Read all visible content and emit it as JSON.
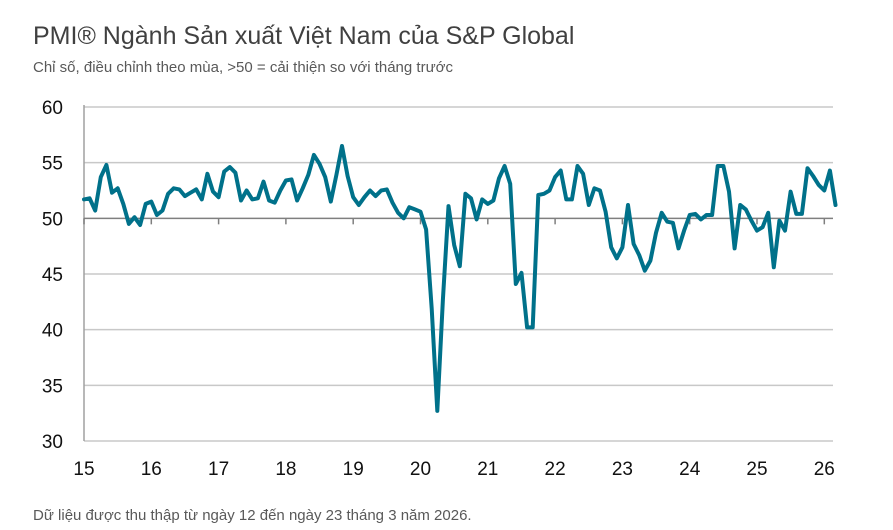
{
  "title": "PMI® Ngành Sản xuất Việt Nam của S&P Global",
  "subtitle": "Chỉ số, điều chỉnh theo mùa, >50 = cải thiện so với tháng trước",
  "footer": "Dữ liệu được thu thập từ ngày 12 đến ngày 23 tháng 3 năm 2026.",
  "chart_data": {
    "type": "line",
    "title": "PMI® Ngành Sản xuất Việt Nam của S&P Global",
    "subtitle": "Chỉ số, điều chỉnh theo mùa, >50 = cải thiện so với tháng trước",
    "xlabel": "",
    "ylabel": "",
    "ylim": [
      30,
      60
    ],
    "yticks": [
      "30",
      "35",
      "40",
      "45",
      "50",
      "55",
      "60"
    ],
    "xticks": [
      "15",
      "16",
      "17",
      "18",
      "19",
      "20",
      "21",
      "22",
      "23",
      "24",
      "25",
      "26"
    ],
    "x_start": "2015-01",
    "x_end": "2026-03",
    "frequency": "monthly",
    "grid": true,
    "line_color": "#00718A",
    "values": [
      51.7,
      51.8,
      50.7,
      53.7,
      54.8,
      52.3,
      52.7,
      51.3,
      49.5,
      50.1,
      49.4,
      51.3,
      51.5,
      50.3,
      50.7,
      52.2,
      52.7,
      52.6,
      52.0,
      52.3,
      52.6,
      51.7,
      54.0,
      52.4,
      51.9,
      54.2,
      54.6,
      54.1,
      51.6,
      52.5,
      51.7,
      51.8,
      53.3,
      51.6,
      51.4,
      52.5,
      53.4,
      53.5,
      51.6,
      52.7,
      53.9,
      55.7,
      54.9,
      53.7,
      51.5,
      53.9,
      56.5,
      53.8,
      51.9,
      51.2,
      51.9,
      52.5,
      52.0,
      52.5,
      52.6,
      51.4,
      50.5,
      50.0,
      51.0,
      50.8,
      50.6,
      49.0,
      41.9,
      32.7,
      42.7,
      51.1,
      47.6,
      45.7,
      52.2,
      51.8,
      49.9,
      51.7,
      51.3,
      51.6,
      53.6,
      54.7,
      53.1,
      44.1,
      45.1,
      40.2,
      40.2,
      52.1,
      52.2,
      52.5,
      53.7,
      54.3,
      51.7,
      51.7,
      54.7,
      54.0,
      51.2,
      52.7,
      52.5,
      50.6,
      47.4,
      46.4,
      47.4,
      51.2,
      47.7,
      46.7,
      45.3,
      46.2,
      48.7,
      50.5,
      49.7,
      49.6,
      47.3,
      48.9,
      50.3,
      50.4,
      49.9,
      50.3,
      50.3,
      54.7,
      54.7,
      52.4,
      47.3,
      51.2,
      50.8,
      49.8,
      48.9,
      49.2,
      50.5,
      45.6,
      49.8,
      48.9,
      52.4,
      50.4,
      50.4,
      54.5,
      53.8,
      53.0,
      52.5,
      54.3,
      51.2
    ]
  }
}
